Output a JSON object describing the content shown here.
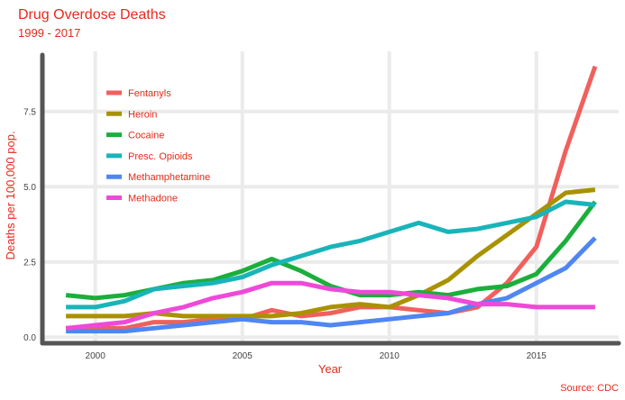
{
  "chart_data": {
    "type": "line",
    "title": "Drug Overdose Deaths",
    "subtitle": "1999 - 2017",
    "xlabel": "Year",
    "ylabel": "Deaths per 100,000 pop.",
    "caption": "Source: CDC",
    "xlim": [
      1998.2,
      2017.8
    ],
    "ylim": [
      -0.2,
      9.5
    ],
    "x_ticks": [
      2000,
      2005,
      2010,
      2015
    ],
    "x_tick_labels": [
      "2000",
      "2005",
      "2010",
      "2015"
    ],
    "y_ticks": [
      0,
      2.5,
      5,
      7.5
    ],
    "y_tick_labels": [
      "0.0",
      "2.5",
      "5.0",
      "7.5"
    ],
    "grid": true,
    "legend_position": "top-left",
    "x": [
      1999,
      2000,
      2001,
      2002,
      2003,
      2004,
      2005,
      2006,
      2007,
      2008,
      2009,
      2010,
      2011,
      2012,
      2013,
      2014,
      2015,
      2016,
      2017
    ],
    "series": [
      {
        "name": "Fentanyls",
        "color": "#f0605d",
        "values": [
          0.3,
          0.3,
          0.3,
          0.5,
          0.5,
          0.6,
          0.6,
          0.9,
          0.7,
          0.8,
          1.0,
          1.0,
          0.9,
          0.8,
          1.0,
          1.8,
          3.0,
          6.2,
          9.0
        ]
      },
      {
        "name": "Heroin",
        "color": "#a89200",
        "values": [
          0.7,
          0.7,
          0.7,
          0.8,
          0.7,
          0.7,
          0.7,
          0.7,
          0.8,
          1.0,
          1.1,
          1.0,
          1.4,
          1.9,
          2.7,
          3.4,
          4.1,
          4.8,
          4.9
        ]
      },
      {
        "name": "Cocaine",
        "color": "#1aaf3b",
        "values": [
          1.4,
          1.3,
          1.4,
          1.6,
          1.8,
          1.9,
          2.2,
          2.6,
          2.2,
          1.7,
          1.4,
          1.4,
          1.5,
          1.4,
          1.6,
          1.7,
          2.1,
          3.2,
          4.5
        ]
      },
      {
        "name": "Presc. Opioids",
        "color": "#19b4b9",
        "values": [
          1.0,
          1.0,
          1.2,
          1.6,
          1.7,
          1.8,
          2.0,
          2.4,
          2.7,
          3.0,
          3.2,
          3.5,
          3.8,
          3.5,
          3.6,
          3.8,
          4.0,
          4.5,
          4.4
        ]
      },
      {
        "name": "Methamphetamine",
        "color": "#4f86f2",
        "values": [
          0.2,
          0.2,
          0.2,
          0.3,
          0.4,
          0.5,
          0.6,
          0.5,
          0.5,
          0.4,
          0.5,
          0.6,
          0.7,
          0.8,
          1.1,
          1.3,
          1.8,
          2.3,
          3.3
        ]
      },
      {
        "name": "Methadone",
        "color": "#ef49d9",
        "values": [
          0.3,
          0.4,
          0.5,
          0.8,
          1.0,
          1.3,
          1.5,
          1.8,
          1.8,
          1.6,
          1.5,
          1.5,
          1.4,
          1.3,
          1.1,
          1.1,
          1.0,
          1.0,
          1.0
        ]
      }
    ]
  }
}
